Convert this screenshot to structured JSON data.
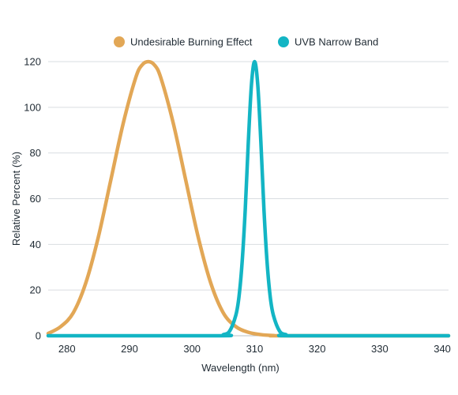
{
  "chart_data": {
    "type": "line",
    "xlabel": "Wavelength (nm)",
    "ylabel": "Relative Percent (%)",
    "xlim": [
      277,
      341
    ],
    "ylim": [
      0,
      120
    ],
    "xticks": [
      280,
      290,
      300,
      310,
      320,
      330,
      340
    ],
    "yticks": [
      0,
      20,
      40,
      60,
      80,
      100,
      120
    ],
    "grid": true,
    "legend_position": "top-center",
    "series": [
      {
        "name": "Undesirable Burning Effect",
        "color": "#E2A756",
        "x": [
          277,
          279,
          281,
          283,
          285,
          287,
          289,
          291,
          292,
          293,
          294,
          295,
          297,
          299,
          301,
          303,
          305,
          307,
          309,
          311,
          313,
          315,
          341
        ],
        "y": [
          1,
          4,
          10,
          23,
          43,
          68,
          93,
          113,
          118.5,
          120,
          118.5,
          113,
          93,
          68,
          43,
          23,
          10,
          4,
          1.5,
          0.5,
          0.1,
          0,
          0
        ]
      },
      {
        "name": "UVB Narrow Band",
        "color": "#13B5C4",
        "x": [
          277,
          304,
          305,
          306,
          307,
          307.5,
          308,
          308.5,
          309,
          309.5,
          310,
          310.5,
          311,
          311.5,
          312,
          312.5,
          313,
          314,
          315,
          316,
          341
        ],
        "y": [
          0,
          0,
          0.5,
          2,
          9,
          17,
          32,
          55,
          85,
          110,
          120,
          110,
          85,
          55,
          32,
          17,
          9,
          2,
          0.5,
          0,
          0
        ]
      }
    ]
  }
}
